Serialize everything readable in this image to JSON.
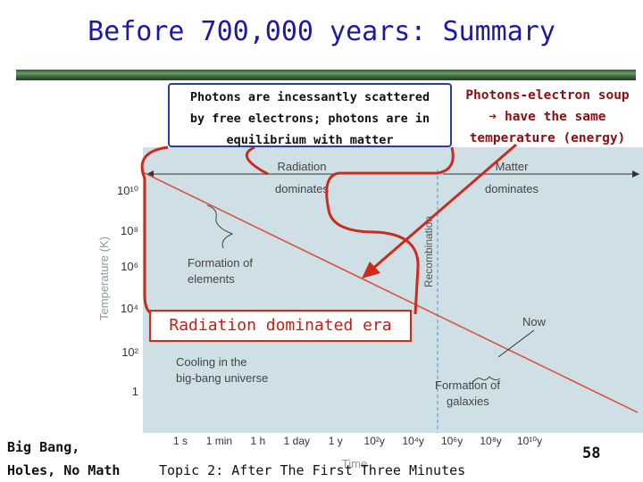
{
  "slide": {
    "title": "Before 700,000 years: Summary",
    "page_number": "58"
  },
  "callouts": {
    "left": [
      "Photons are incessantly scattered",
      "by free electrons; photons are in",
      "equilibrium with matter"
    ],
    "right": [
      "Photons-electron soup",
      "➔ have the same",
      "temperature (energy)"
    ],
    "era": "Radiation dominated era"
  },
  "footer": {
    "left_line1": "Big Bang,",
    "left_line2": "Holes, No Math",
    "topic": "Topic 2: After The First Three Minutes"
  },
  "chart_data": {
    "type": "line",
    "title": "",
    "xlabel": "Time",
    "ylabel": "Temperature (K)",
    "x_ticks": [
      "1 s",
      "1 min",
      "1 h",
      "1 day",
      "1 y",
      "10²y",
      "10⁴y",
      "10⁶y",
      "10⁸y",
      "10¹⁰y"
    ],
    "y_ticks": [
      "10¹⁰",
      "10⁸",
      "10⁶",
      "10⁴",
      "10²",
      "1"
    ],
    "series": [
      {
        "x": [
          "1 s",
          "10¹⁰y"
        ],
        "y": [
          10000000000,
          1.5
        ],
        "color": "#d9543f"
      }
    ],
    "annotations": {
      "radiation": [
        "Radiation",
        "dominates"
      ],
      "matter": [
        "Matter",
        "dominates"
      ],
      "recombination": "Recombination",
      "formation_elements": [
        "Formation of",
        "elements"
      ],
      "cooling": [
        "Cooling in the",
        "big-bang universe"
      ],
      "now": "Now",
      "formation_galaxies": [
        "Formation of",
        "galaxies"
      ]
    },
    "recombination_at": "10⁵y",
    "colors": {
      "background": "#cfdfe6",
      "line": "#d9543f",
      "recombination": "#6aa3d0"
    }
  }
}
